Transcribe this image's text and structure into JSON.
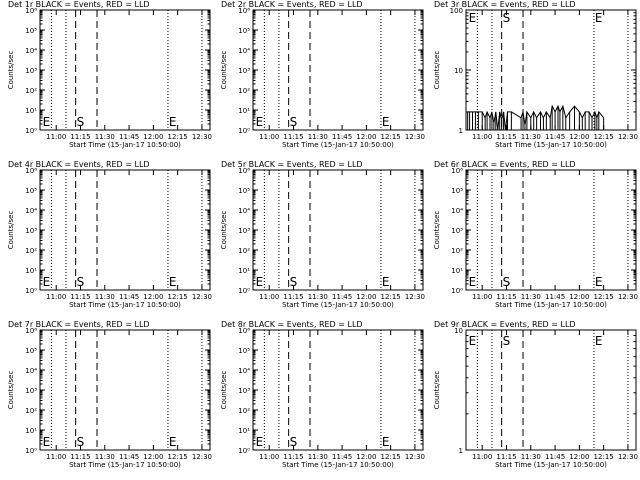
{
  "chart_data": [
    {
      "type": "line",
      "title": "Det 1r BLACK = Events, RED = LLD",
      "xlabel": "Start Time (15-Jan-17 10:50:00)",
      "ylabel": "Counts/sec",
      "yscale": "log",
      "ylim": [
        1,
        1000000
      ],
      "ytick_labels": [
        "10⁰",
        "10¹",
        "10²",
        "10³",
        "10⁴",
        "10⁵",
        "10⁶"
      ],
      "xtick_labels": [
        "11:00",
        "11:15",
        "11:30",
        "11:45",
        "12:00",
        "12:15",
        "12:30"
      ],
      "markers": [
        "E",
        "S",
        "E"
      ],
      "series": []
    },
    {
      "type": "line",
      "title": "Det 2r BLACK = Events, RED = LLD",
      "xlabel": "Start Time (15-Jan-17 10:50:00)",
      "ylabel": "Counts/sec",
      "yscale": "log",
      "ylim": [
        1,
        1000000
      ],
      "ytick_labels": [
        "10⁰",
        "10¹",
        "10²",
        "10³",
        "10⁴",
        "10⁵",
        "10⁶"
      ],
      "xtick_labels": [
        "11:00",
        "11:15",
        "11:30",
        "11:45",
        "12:00",
        "12:15",
        "12:30"
      ],
      "markers": [
        "E",
        "S",
        "E"
      ],
      "series": []
    },
    {
      "type": "line",
      "title": "Det 3r BLACK = Events, RED = LLD",
      "xlabel": "Start Time (15-Jan-17 10:50:00)",
      "ylabel": "Counts/sec",
      "yscale": "log",
      "ylim": [
        1,
        100
      ],
      "ytick_labels": [
        "1",
        "10",
        "100"
      ],
      "xtick_labels": [
        "11:00",
        "11:15",
        "11:30",
        "11:45",
        "12:00",
        "12:15",
        "12:30"
      ],
      "markers": [
        "E",
        "S",
        "E"
      ],
      "series": [
        {
          "values": [
            [
              10.85,
              2
            ],
            [
              10.87,
              2
            ],
            [
              10.9,
              2
            ],
            [
              10.93,
              2
            ],
            [
              10.96,
              2
            ],
            [
              11.0,
              2
            ],
            [
              11.03,
              1.6
            ],
            [
              11.05,
              2
            ],
            [
              11.08,
              1.6
            ],
            [
              11.1,
              2
            ],
            [
              11.12,
              1.3
            ],
            [
              11.14,
              2
            ],
            [
              11.16,
              1
            ],
            [
              11.18,
              2
            ],
            [
              11.2,
              1.5
            ],
            [
              11.22,
              2
            ],
            [
              11.24,
              1
            ],
            [
              11.26,
              2
            ],
            [
              11.3,
              2
            ],
            [
              11.4,
              1.6
            ],
            [
              11.42,
              2
            ],
            [
              11.44,
              1.2
            ],
            [
              11.46,
              2
            ],
            [
              11.5,
              1.6
            ],
            [
              11.53,
              2
            ],
            [
              11.56,
              1.6
            ],
            [
              11.6,
              2
            ],
            [
              11.63,
              1.6
            ],
            [
              11.66,
              2
            ],
            [
              11.7,
              1.6
            ],
            [
              11.72,
              2.5
            ],
            [
              11.75,
              2
            ],
            [
              11.78,
              2.5
            ],
            [
              11.8,
              2
            ],
            [
              11.83,
              2.5
            ],
            [
              11.86,
              1.6
            ],
            [
              11.9,
              2
            ],
            [
              11.95,
              2.5
            ],
            [
              12.0,
              2
            ],
            [
              12.03,
              1.6
            ],
            [
              12.06,
              2
            ],
            [
              12.1,
              2
            ],
            [
              12.13,
              1.6
            ],
            [
              12.16,
              2
            ],
            [
              12.18,
              1.6
            ],
            [
              12.2,
              2
            ],
            [
              12.25,
              1.6
            ]
          ]
        }
      ]
    },
    {
      "type": "line",
      "title": "Det 4r BLACK = Events, RED = LLD",
      "xlabel": "Start Time (15-Jan-17 10:50:00)",
      "ylabel": "Counts/sec",
      "yscale": "log",
      "ylim": [
        1,
        1000000
      ],
      "ytick_labels": [
        "10⁰",
        "10¹",
        "10²",
        "10³",
        "10⁴",
        "10⁵",
        "10⁶"
      ],
      "xtick_labels": [
        "11:00",
        "11:15",
        "11:30",
        "11:45",
        "12:00",
        "12:15",
        "12:30"
      ],
      "markers": [
        "E",
        "S",
        "E"
      ],
      "series": []
    },
    {
      "type": "line",
      "title": "Det 5r BLACK = Events, RED = LLD",
      "xlabel": "Start Time (15-Jan-17 10:50:00)",
      "ylabel": "Counts/sec",
      "yscale": "log",
      "ylim": [
        1,
        1000000
      ],
      "ytick_labels": [
        "10⁰",
        "10¹",
        "10²",
        "10³",
        "10⁴",
        "10⁵",
        "10⁶"
      ],
      "xtick_labels": [
        "11:00",
        "11:15",
        "11:30",
        "11:45",
        "12:00",
        "12:15",
        "12:30"
      ],
      "markers": [
        "E",
        "S",
        "E"
      ],
      "series": []
    },
    {
      "type": "line",
      "title": "Det 6r BLACK = Events, RED = LLD",
      "xlabel": "Start Time (15-Jan-17 10:50:00)",
      "ylabel": "Counts/sec",
      "yscale": "log",
      "ylim": [
        1,
        1000000
      ],
      "ytick_labels": [
        "10⁰",
        "10¹",
        "10²",
        "10³",
        "10⁴",
        "10⁵",
        "10⁶"
      ],
      "xtick_labels": [
        "11:00",
        "11:15",
        "11:30",
        "11:45",
        "12:00",
        "12:15",
        "12:30"
      ],
      "markers": [
        "E",
        "S",
        "E"
      ],
      "series": []
    },
    {
      "type": "line",
      "title": "Det 7r BLACK = Events, RED = LLD",
      "xlabel": "Start Time (15-Jan-17 10:50:00)",
      "ylabel": "Counts/sec",
      "yscale": "log",
      "ylim": [
        1,
        1000000
      ],
      "ytick_labels": [
        "10⁰",
        "10¹",
        "10²",
        "10³",
        "10⁴",
        "10⁵",
        "10⁶"
      ],
      "xtick_labels": [
        "11:00",
        "11:15",
        "11:30",
        "11:45",
        "12:00",
        "12:15",
        "12:30"
      ],
      "markers": [
        "E",
        "S",
        "E"
      ],
      "series": []
    },
    {
      "type": "line",
      "title": "Det 8r BLACK = Events, RED = LLD",
      "xlabel": "Start Time (15-Jan-17 10:50:00)",
      "ylabel": "Counts/sec",
      "yscale": "log",
      "ylim": [
        1,
        1000000
      ],
      "ytick_labels": [
        "10⁰",
        "10¹",
        "10²",
        "10³",
        "10⁴",
        "10⁵",
        "10⁶"
      ],
      "xtick_labels": [
        "11:00",
        "11:15",
        "11:30",
        "11:45",
        "12:00",
        "12:15",
        "12:30"
      ],
      "markers": [
        "E",
        "S",
        "E"
      ],
      "series": []
    },
    {
      "type": "line",
      "title": "Det 9r BLACK = Events, RED = LLD",
      "xlabel": "Start Time (15-Jan-17 10:50:00)",
      "ylabel": "Counts/sec",
      "yscale": "log",
      "ylim": [
        1,
        10
      ],
      "ytick_labels": [
        "1",
        "10"
      ],
      "xtick_labels": [
        "11:00",
        "11:15",
        "11:30",
        "11:45",
        "12:00",
        "12:15",
        "12:30"
      ],
      "markers": [
        "E",
        "S",
        "E"
      ],
      "series": []
    }
  ]
}
